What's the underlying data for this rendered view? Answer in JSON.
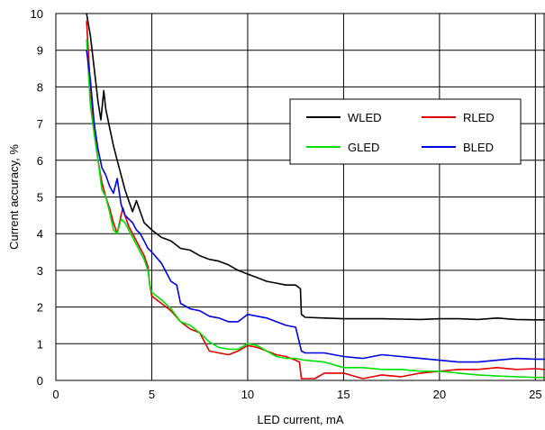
{
  "chart_data": {
    "type": "line",
    "title": "",
    "xlabel": "LED current, mA",
    "ylabel": "Current accuracy, %",
    "xlim": [
      0,
      25.5
    ],
    "ylim": [
      0,
      10
    ],
    "xticks": [
      0,
      5,
      10,
      15,
      20,
      25
    ],
    "yticks": [
      0,
      1,
      2,
      3,
      4,
      5,
      6,
      7,
      8,
      9,
      10
    ],
    "grid": true,
    "legend_placement": "top-right, inside plot, 2 columns",
    "series": [
      {
        "name": "WLED",
        "color": "#000000",
        "points": [
          [
            1.45,
            10.2
          ],
          [
            1.6,
            10
          ],
          [
            1.8,
            9.4
          ],
          [
            2.0,
            8.5
          ],
          [
            2.2,
            7.6
          ],
          [
            2.35,
            7.1
          ],
          [
            2.5,
            7.9
          ],
          [
            2.6,
            7.4
          ],
          [
            2.8,
            6.9
          ],
          [
            3.0,
            6.4
          ],
          [
            3.2,
            6.0
          ],
          [
            3.4,
            5.6
          ],
          [
            3.6,
            5.2
          ],
          [
            3.8,
            4.9
          ],
          [
            4.0,
            4.6
          ],
          [
            4.2,
            4.9
          ],
          [
            4.4,
            4.6
          ],
          [
            4.6,
            4.3
          ],
          [
            5.0,
            4.1
          ],
          [
            5.5,
            3.9
          ],
          [
            6.0,
            3.8
          ],
          [
            6.5,
            3.6
          ],
          [
            7.0,
            3.55
          ],
          [
            7.5,
            3.4
          ],
          [
            8.0,
            3.3
          ],
          [
            8.5,
            3.25
          ],
          [
            9.0,
            3.15
          ],
          [
            9.5,
            3.0
          ],
          [
            10.0,
            2.9
          ],
          [
            10.5,
            2.8
          ],
          [
            11.0,
            2.7
          ],
          [
            11.5,
            2.65
          ],
          [
            12.0,
            2.6
          ],
          [
            12.5,
            2.6
          ],
          [
            12.75,
            2.5
          ],
          [
            12.8,
            1.8
          ],
          [
            13,
            1.72
          ],
          [
            14,
            1.7
          ],
          [
            15,
            1.68
          ],
          [
            16,
            1.68
          ],
          [
            17,
            1.68
          ],
          [
            18,
            1.67
          ],
          [
            19,
            1.66
          ],
          [
            20,
            1.68
          ],
          [
            21,
            1.68
          ],
          [
            22,
            1.66
          ],
          [
            23,
            1.7
          ],
          [
            24,
            1.66
          ],
          [
            25,
            1.65
          ],
          [
            25.5,
            1.65
          ]
        ]
      },
      {
        "name": "RLED",
        "color": "#e00000",
        "points": [
          [
            1.6,
            9.8
          ],
          [
            1.8,
            8.0
          ],
          [
            2.0,
            6.8
          ],
          [
            2.2,
            6.0
          ],
          [
            2.4,
            5.4
          ],
          [
            2.6,
            5.0
          ],
          [
            2.8,
            4.7
          ],
          [
            3.0,
            4.3
          ],
          [
            3.2,
            4.0
          ],
          [
            3.4,
            4.5
          ],
          [
            3.5,
            4.7
          ],
          [
            3.6,
            4.5
          ],
          [
            3.8,
            4.2
          ],
          [
            4.0,
            4.0
          ],
          [
            4.2,
            3.8
          ],
          [
            4.4,
            3.6
          ],
          [
            4.6,
            3.4
          ],
          [
            4.8,
            3.1
          ],
          [
            4.9,
            2.6
          ],
          [
            5.0,
            2.3
          ],
          [
            5.5,
            2.1
          ],
          [
            6.0,
            1.9
          ],
          [
            6.5,
            1.6
          ],
          [
            7.0,
            1.4
          ],
          [
            7.5,
            1.3
          ],
          [
            8.0,
            0.8
          ],
          [
            8.5,
            0.75
          ],
          [
            9.0,
            0.7
          ],
          [
            9.5,
            0.8
          ],
          [
            10.0,
            0.95
          ],
          [
            10.5,
            0.9
          ],
          [
            11.0,
            0.8
          ],
          [
            11.5,
            0.7
          ],
          [
            12.0,
            0.65
          ],
          [
            12.5,
            0.55
          ],
          [
            12.7,
            0.5
          ],
          [
            12.8,
            0.05
          ],
          [
            13.5,
            0.05
          ],
          [
            14,
            0.2
          ],
          [
            15,
            0.2
          ],
          [
            16,
            0.05
          ],
          [
            17,
            0.15
          ],
          [
            18,
            0.1
          ],
          [
            19,
            0.2
          ],
          [
            20,
            0.25
          ],
          [
            21,
            0.3
          ],
          [
            22,
            0.3
          ],
          [
            23,
            0.35
          ],
          [
            24,
            0.3
          ],
          [
            25,
            0.32
          ],
          [
            25.5,
            0.3
          ]
        ]
      },
      {
        "name": "GLED",
        "color": "#00e000",
        "points": [
          [
            1.6,
            9.3
          ],
          [
            1.8,
            7.5
          ],
          [
            2.0,
            6.7
          ],
          [
            2.2,
            6.0
          ],
          [
            2.4,
            5.2
          ],
          [
            2.6,
            5.0
          ],
          [
            2.8,
            4.6
          ],
          [
            3.0,
            4.1
          ],
          [
            3.2,
            4.0
          ],
          [
            3.4,
            4.4
          ],
          [
            3.6,
            4.3
          ],
          [
            3.8,
            4.1
          ],
          [
            4.0,
            3.9
          ],
          [
            4.2,
            3.7
          ],
          [
            4.4,
            3.5
          ],
          [
            4.6,
            3.3
          ],
          [
            4.8,
            3.0
          ],
          [
            4.9,
            2.6
          ],
          [
            5.0,
            2.4
          ],
          [
            5.5,
            2.2
          ],
          [
            6.0,
            1.95
          ],
          [
            6.5,
            1.6
          ],
          [
            7.0,
            1.5
          ],
          [
            7.5,
            1.3
          ],
          [
            8.0,
            1.05
          ],
          [
            8.5,
            0.9
          ],
          [
            9.0,
            0.85
          ],
          [
            9.5,
            0.85
          ],
          [
            10.0,
            1.0
          ],
          [
            10.5,
            0.95
          ],
          [
            11.0,
            0.8
          ],
          [
            11.5,
            0.65
          ],
          [
            12.0,
            0.6
          ],
          [
            12.5,
            0.6
          ],
          [
            13,
            0.55
          ],
          [
            14,
            0.5
          ],
          [
            15,
            0.35
          ],
          [
            16,
            0.35
          ],
          [
            17,
            0.3
          ],
          [
            18,
            0.3
          ],
          [
            19,
            0.25
          ],
          [
            20,
            0.25
          ],
          [
            21,
            0.2
          ],
          [
            22,
            0.15
          ],
          [
            23,
            0.12
          ],
          [
            24,
            0.1
          ],
          [
            25,
            0.08
          ],
          [
            25.5,
            0.08
          ]
        ]
      },
      {
        "name": "BLED",
        "color": "#0000e0",
        "points": [
          [
            1.6,
            9.0
          ],
          [
            1.8,
            8.2
          ],
          [
            2.0,
            7.0
          ],
          [
            2.2,
            6.3
          ],
          [
            2.4,
            5.8
          ],
          [
            2.6,
            5.6
          ],
          [
            2.8,
            5.3
          ],
          [
            3.0,
            5.1
          ],
          [
            3.2,
            5.5
          ],
          [
            3.4,
            4.8
          ],
          [
            3.6,
            4.5
          ],
          [
            3.8,
            4.4
          ],
          [
            4.0,
            4.3
          ],
          [
            4.2,
            4.1
          ],
          [
            4.4,
            4.0
          ],
          [
            4.6,
            3.8
          ],
          [
            4.8,
            3.6
          ],
          [
            5.0,
            3.5
          ],
          [
            5.5,
            3.2
          ],
          [
            6.0,
            2.7
          ],
          [
            6.3,
            2.6
          ],
          [
            6.5,
            2.1
          ],
          [
            7.0,
            1.95
          ],
          [
            7.5,
            1.9
          ],
          [
            8.0,
            1.75
          ],
          [
            8.5,
            1.7
          ],
          [
            9.0,
            1.6
          ],
          [
            9.5,
            1.6
          ],
          [
            10.0,
            1.8
          ],
          [
            10.5,
            1.75
          ],
          [
            11.0,
            1.7
          ],
          [
            11.5,
            1.6
          ],
          [
            12.0,
            1.5
          ],
          [
            12.5,
            1.45
          ],
          [
            12.8,
            0.8
          ],
          [
            13,
            0.75
          ],
          [
            14,
            0.75
          ],
          [
            15,
            0.65
          ],
          [
            16,
            0.6
          ],
          [
            17,
            0.7
          ],
          [
            18,
            0.65
          ],
          [
            19,
            0.6
          ],
          [
            20,
            0.55
          ],
          [
            21,
            0.5
          ],
          [
            22,
            0.5
          ],
          [
            23,
            0.55
          ],
          [
            24,
            0.6
          ],
          [
            25,
            0.58
          ],
          [
            25.5,
            0.58
          ]
        ]
      }
    ]
  }
}
